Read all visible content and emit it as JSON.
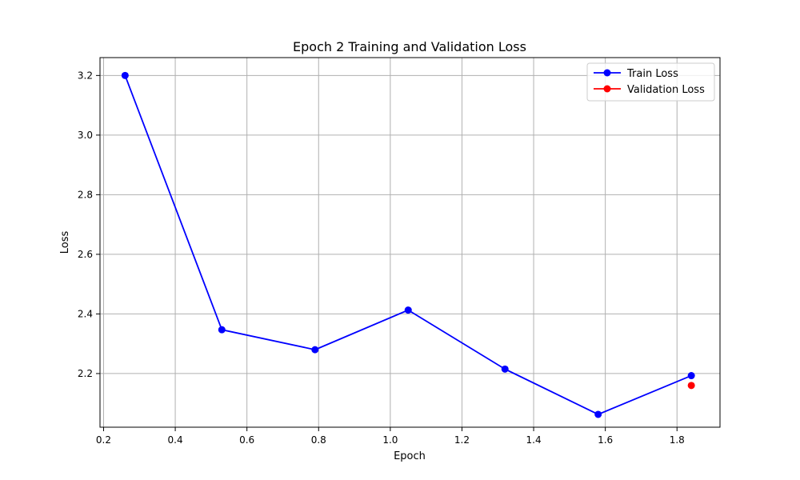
{
  "chart_data": {
    "type": "line",
    "title": "Epoch 2 Training and Validation Loss",
    "xlabel": "Epoch",
    "ylabel": "Loss",
    "xlim": [
      0.19,
      1.92
    ],
    "ylim": [
      2.02,
      3.26
    ],
    "xticks": [
      "0.2",
      "0.4",
      "0.6",
      "0.8",
      "1.0",
      "1.2",
      "1.4",
      "1.6",
      "1.8"
    ],
    "yticks": [
      "2.2",
      "2.4",
      "2.6",
      "2.8",
      "3.0",
      "3.2"
    ],
    "grid": true,
    "legend_position": "top-right",
    "series": [
      {
        "name": "Train Loss",
        "color": "#0000ff",
        "marker": "circle",
        "line": true,
        "x": [
          0.26,
          0.53,
          0.79,
          1.05,
          1.32,
          1.58,
          1.84
        ],
        "y": [
          3.2,
          2.347,
          2.28,
          2.413,
          2.215,
          2.063,
          2.193
        ]
      },
      {
        "name": "Validation Loss",
        "color": "#ff0000",
        "marker": "circle",
        "line": true,
        "x": [
          1.84
        ],
        "y": [
          2.16
        ]
      }
    ]
  }
}
